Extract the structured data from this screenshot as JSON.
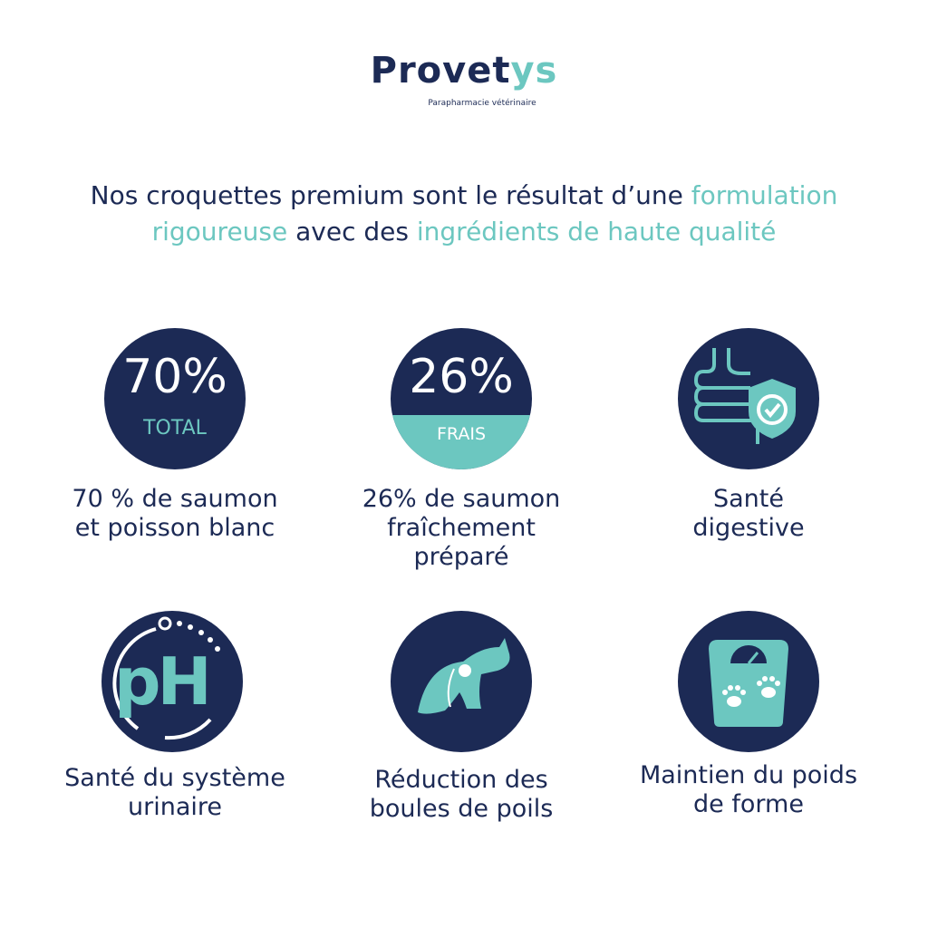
{
  "brand": {
    "name_main": "Provet",
    "name_accent": "ys",
    "tagline": "Parapharmacie vétérinaire"
  },
  "headline": {
    "part1": "Nos croquettes premium sont le résultat d’une ",
    "highlight1": "formulation rigoureuse",
    "part2": " avec des ",
    "highlight2": "ingrédients de haute qualité"
  },
  "features": [
    {
      "big": "70%",
      "sub": "TOTAL",
      "label_lines": [
        "70 % de saumon",
        "et poisson blanc"
      ]
    },
    {
      "big": "26%",
      "sub": "FRAIS",
      "label_lines": [
        "26% de saumon",
        "fraîchement",
        "préparé"
      ]
    },
    {
      "icon": "intestine-shield-check-icon",
      "label_lines": [
        "Santé",
        "digestive"
      ]
    },
    {
      "icon": "ph-icon",
      "icon_text": "pH",
      "label_lines": [
        "Santé du système",
        "urinaire"
      ]
    },
    {
      "icon": "cat-grooming-icon",
      "label_lines": [
        "Réduction des",
        "boules de poils"
      ]
    },
    {
      "icon": "scale-paws-icon",
      "label_lines": [
        "Maintien du poids",
        "de forme"
      ]
    }
  ],
  "colors": {
    "navy": "#1c2a55",
    "teal": "#6cc7c0"
  }
}
